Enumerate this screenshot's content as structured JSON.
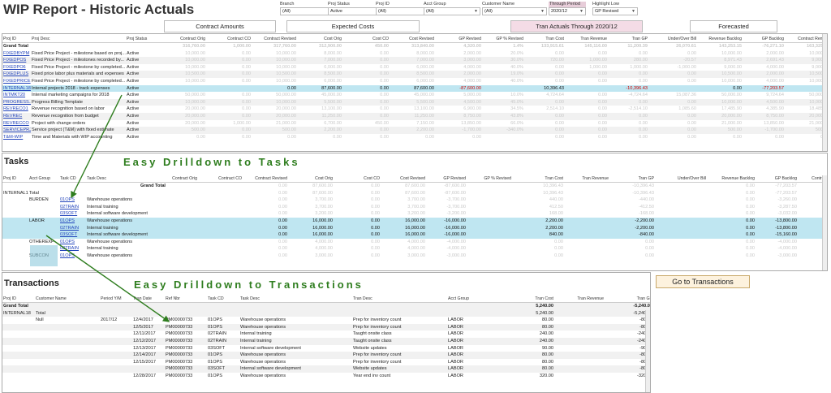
{
  "title": "WIP Report - Historic Actuals",
  "filters": [
    {
      "label": "Branch",
      "value": "(All)",
      "selected": false
    },
    {
      "label": "Proj Status",
      "value": "Active",
      "selected": false
    },
    {
      "label": "Proj ID",
      "value": "(All)",
      "selected": false
    },
    {
      "label": "Acct Group",
      "value": "(All)",
      "selected": false
    },
    {
      "label": "Customer Name",
      "value": "(All)",
      "selected": false
    },
    {
      "label": "Through Period",
      "value": "2020/12",
      "selected": true
    },
    {
      "label": "Highlight Low",
      "value": "GP Revised",
      "selected": false
    }
  ],
  "header_buttons": {
    "contract": "Contract Amounts",
    "costs": "Expected Costs",
    "tran": "Tran Actuals Through 2020/12",
    "forecasted": "Forecasted"
  },
  "projects": {
    "columns": [
      "Proj ID",
      "Proj Desc",
      "Proj Status",
      "Contract Orig",
      "Contract CO",
      "Contract Revised",
      "Cost Orig",
      "Cost CO",
      "Cost Revised",
      "GP Revised",
      "GP % Revised",
      "Tran Cost",
      "Tran Revenue",
      "Tran GP",
      "Under/Over Bill",
      "Revenue Backlog",
      "GP Backlog",
      "Contract Remain"
    ],
    "grand_total": [
      "Grand Total",
      "",
      "",
      "316,760.00",
      "1,000.00",
      "317,760.00",
      "312,900.00",
      "450.00",
      "313,840.00",
      "4,320.00",
      "1.4%",
      "133,915.61",
      "145,116.00",
      "11,200.39",
      "26,070.61",
      "143,253.15",
      "-76,271.10",
      "163,325.82"
    ],
    "rows": [
      [
        "FIXEDBYPM",
        "Fixed Price Project - milestone based on proj...",
        "Active",
        "10,000.00",
        "0.00",
        "10,000.00",
        "8,000.00",
        "0.00",
        "8,000.00",
        "2,000.00",
        "20.0%",
        "0.00",
        "0.00",
        "0.00",
        "0.00",
        "10,000.00",
        "2,000.00",
        "10,000.00"
      ],
      [
        "FIXEDPOS",
        "Fixed Price Project - milestones recorded by...",
        "Active",
        "10,000.00",
        "0.00",
        "10,000.00",
        "7,000.00",
        "0.00",
        "7,000.00",
        "3,000.00",
        "30.0%",
        "720.00",
        "1,000.00",
        "280.00",
        "-20.57",
        "8,971.43",
        "2,691.43",
        "9,000.00"
      ],
      [
        "FIXEDPO6",
        "Fixed Price Project - milestone by completed...",
        "Active",
        "10,000.00",
        "0.00",
        "10,000.00",
        "6,000.00",
        "0.00",
        "6,000.00",
        "4,000.00",
        "40.0%",
        "0.00",
        "1,000.00",
        "1,000.00",
        "-1,000.00",
        "9,000.00",
        "4,000.00",
        "9,000.00"
      ],
      [
        "FIXEDPLUS",
        "Fixed price labor plus materials and expenses",
        "Active",
        "10,500.00",
        "0.00",
        "10,500.00",
        "8,500.00",
        "0.00",
        "8,500.00",
        "2,000.00",
        "19.0%",
        "0.00",
        "0.00",
        "0.00",
        "0.00",
        "10,500.00",
        "2,000.00",
        "10,500.00"
      ],
      [
        "FIXEDPRICE",
        "Fixed Price Project - milestone by completed...",
        "Active",
        "10,000.00",
        "0.00",
        "10,000.00",
        "6,000.00",
        "0.00",
        "6,000.00",
        "4,000.00",
        "40.0%",
        "0.00",
        "0.00",
        "0.00",
        "0.00",
        "10,000.00",
        "4,000.00",
        "10,000.00"
      ],
      [
        "INTERNAL18",
        "Internal projects 2018 - track expenses",
        "Active",
        "",
        "",
        "0.00",
        "87,600.00",
        "0.00",
        "87,600.00",
        "-87,600.00",
        "",
        "10,396.43",
        "",
        "-10,396.43",
        "",
        "0.00",
        "-77,203.57",
        ""
      ],
      [
        "INTMKT20",
        "Internal marketing campaigns for 2018",
        "Active",
        "50,000.00",
        "0.00",
        "50,000.00",
        "45,000.00",
        "0.00",
        "45,000.00",
        "5,000.00",
        "10.0%",
        "4,724.64",
        "0.00",
        "-4,724.64",
        "15,087.36",
        "50,000.00",
        "9,724.64",
        "50,000.00"
      ],
      [
        "PROGRESS...",
        "Progress Billing Template",
        "Active",
        "10,000.00",
        "0.00",
        "10,000.00",
        "5,500.00",
        "0.00",
        "5,500.00",
        "4,500.00",
        "45.0%",
        "0.00",
        "0.00",
        "0.00",
        "0.00",
        "10,000.00",
        "4,500.00",
        "10,000.00"
      ],
      [
        "REVRECO1",
        "Revenue recognition based on labor",
        "Active",
        "20,000.00",
        "0.00",
        "20,000.00",
        "13,100.00",
        "0.00",
        "13,100.00",
        "6,900.00",
        "34.5%",
        "2,514.10",
        "0.00",
        "-2,514.10",
        "1,085.60",
        "17,485.90",
        "4,385.90",
        "18,485.00"
      ],
      [
        "REVREC",
        "Revenue recognition from budget",
        "Active",
        "20,000.00",
        "0.00",
        "20,000.00",
        "11,250.00",
        "0.00",
        "11,250.00",
        "8,750.00",
        "43.8%",
        "0.00",
        "0.00",
        "0.00",
        "0.00",
        "20,000.00",
        "8,750.00",
        "20,000.00"
      ],
      [
        "REVRECCO",
        "Project with change orders",
        "Active",
        "20,000.00",
        "1,000.00",
        "21,000.00",
        "6,700.00",
        "450.00",
        "7,150.00",
        "13,850.00",
        "66.0%",
        "0.00",
        "0.00",
        "0.00",
        "0.00",
        "21,000.00",
        "13,850.00",
        "21,000.00"
      ],
      [
        "SERVICEPRJ",
        "Service project (T&M) with fixed estimate",
        "Active",
        "500.00",
        "0.00",
        "500.00",
        "2,200.00",
        "0.00",
        "2,200.00",
        "-1,700.00",
        "-340.0%",
        "0.00",
        "0.00",
        "0.00",
        "0.00",
        "500.00",
        "-1,700.00",
        "500.00"
      ],
      [
        "T&M-WIP",
        "Time and Materials with WIP accounting",
        "Active",
        "0.00",
        "0.00",
        "0.00",
        "0.00",
        "0.00",
        "0.00",
        "0.00",
        "",
        "0.00",
        "0.00",
        "0.00",
        "0.00",
        "0.00",
        "0.00",
        "0.00"
      ]
    ]
  },
  "tasks": {
    "heading": "Tasks",
    "columns": [
      "Proj ID",
      "Acct Group",
      "Task CD",
      "Task Desc",
      "Contract Orig",
      "Contract CO",
      "Contract Revised",
      "Cost Orig",
      "Cost CO",
      "Cost Revised",
      "GP Revised",
      "GP % Revised",
      "Tran Cost",
      "Tran Revenue",
      "Tran GP",
      "Under/Over Bill",
      "Revenue Backlog",
      "GP Backlog",
      "Contract Remain"
    ],
    "grand_total_label": "Grand Total",
    "rows": [
      {
        "proj": "",
        "acct": "",
        "task": "",
        "desc": "",
        "vals": [
          "",
          "",
          "0.00",
          "87,600.00",
          "0.00",
          "87,600.00",
          "-87,600.00",
          "",
          "10,396.43",
          "",
          "-10,396.43",
          "",
          "0.00",
          "-77,203.57",
          ""
        ],
        "style": "faded"
      },
      {
        "proj": "INTERNAL18",
        "acct": "Total",
        "task": "",
        "desc": "",
        "vals": [
          "",
          "",
          "0.00",
          "87,600.00",
          "0.00",
          "87,600.00",
          "-87,600.00",
          "",
          "10,396.43",
          "",
          "-10,396.43",
          "",
          "0.00",
          "-77,203.57",
          ""
        ],
        "style": "faded"
      },
      {
        "proj": "",
        "acct": "BURDEN",
        "task": "01OPS",
        "desc": "Warehouse operations",
        "vals": [
          "",
          "",
          "0.00",
          "3,700.00",
          "0.00",
          "3,700.00",
          "-3,700.00",
          "",
          "440.00",
          "",
          "-440.00",
          "",
          "0.00",
          "-3,260.00",
          ""
        ],
        "style": "faded"
      },
      {
        "proj": "",
        "acct": "",
        "task": "02TRAIN",
        "desc": "Internal training",
        "vals": [
          "",
          "",
          "0.00",
          "3,700.00",
          "0.00",
          "3,700.00",
          "-3,700.00",
          "",
          "412.50",
          "",
          "-412.50",
          "",
          "0.00",
          "-3,287.50",
          ""
        ],
        "style": "faded"
      },
      {
        "proj": "",
        "acct": "",
        "task": "03SOFT",
        "desc": "Internal software development",
        "vals": [
          "",
          "",
          "0.00",
          "3,200.00",
          "0.00",
          "3,200.00",
          "-3,200.00",
          "",
          "168.00",
          "",
          "-168.00",
          "",
          "0.00",
          "-3,032.00",
          ""
        ],
        "style": "faded"
      },
      {
        "proj": "",
        "acct": "LABOR",
        "task": "01OPS",
        "desc": "Warehouse operations",
        "vals": [
          "",
          "",
          "0.00",
          "16,000.00",
          "0.00",
          "16,000.00",
          "-16,000.00",
          "",
          "2,200.00",
          "",
          "-2,200.00",
          "",
          "0.00",
          "-13,800.00",
          ""
        ],
        "style": "hl"
      },
      {
        "proj": "",
        "acct": "",
        "task": "02TRAIN",
        "desc": "Internal training",
        "vals": [
          "",
          "",
          "0.00",
          "16,000.00",
          "0.00",
          "16,000.00",
          "-16,000.00",
          "",
          "2,200.00",
          "",
          "-2,200.00",
          "",
          "0.00",
          "-13,800.00",
          ""
        ],
        "style": "hl"
      },
      {
        "proj": "",
        "acct": "",
        "task": "03SOFT",
        "desc": "Internal software development",
        "vals": [
          "",
          "",
          "0.00",
          "16,000.00",
          "0.00",
          "16,000.00",
          "-16,000.00",
          "",
          "840.00",
          "",
          "-840.00",
          "",
          "0.00",
          "-15,160.00",
          ""
        ],
        "style": "hl"
      },
      {
        "proj": "",
        "acct": "OTHEREXP",
        "task": "01OPS",
        "desc": "Warehouse operations",
        "vals": [
          "",
          "",
          "0.00",
          "4,000.00",
          "0.00",
          "4,000.00",
          "-4,000.00",
          "",
          "0.00",
          "",
          "0.00",
          "",
          "0.00",
          "-4,000.00",
          ""
        ],
        "style": "faded"
      },
      {
        "proj": "",
        "acct": "",
        "task": "02TRAIN",
        "desc": "Internal training",
        "vals": [
          "",
          "",
          "0.00",
          "4,000.00",
          "0.00",
          "4,000.00",
          "-4,000.00",
          "",
          "0.00",
          "",
          "0.00",
          "",
          "0.00",
          "-4,000.00",
          ""
        ],
        "style": "faded"
      },
      {
        "proj": "",
        "acct": "SUBCON",
        "task": "01OPS",
        "desc": "Warehouse operations",
        "vals": [
          "",
          "",
          "0.00",
          "3,000.00",
          "0.00",
          "3,000.00",
          "-3,000.00",
          "",
          "0.00",
          "",
          "0.00",
          "",
          "0.00",
          "-3,000.00",
          ""
        ],
        "style": "faded"
      }
    ]
  },
  "transactions": {
    "heading": "Transactions",
    "go_button": "Go to Transactions",
    "columns": [
      "Proj ID",
      "Customer Name",
      "Period Y/M",
      "Tran Date",
      "Ref Nbr",
      "Task CD",
      "Task Desc",
      "Tran Desc",
      "Acct Group",
      "Tran Cost",
      "Tran Revenue",
      "Tran GP"
    ],
    "grand_total": {
      "label": "Grand Total",
      "cost": "5,240.00",
      "gp": "-5,240.00"
    },
    "total": {
      "proj": "INTERNAL18",
      "label": "Total",
      "cost": "5,240.00",
      "gp": "-5,240.00"
    },
    "customer": "Null",
    "period": "2017/12",
    "rows": [
      [
        "12/4/2017",
        "PM00000733",
        "01OPS",
        "Warehouse operations",
        "Prep for inventory count",
        "LABOR",
        "80.00",
        "",
        "-80.00"
      ],
      [
        "12/5/2017",
        "PM00000733",
        "01OPS",
        "Warehouse operations",
        "Prep for inventory count",
        "LABOR",
        "80.00",
        "",
        "-80.00"
      ],
      [
        "12/11/2017",
        "PM00000733",
        "02TRAIN",
        "Internal training",
        "Taught onsite class",
        "LABOR",
        "240.00",
        "",
        "-240.00"
      ],
      [
        "12/12/2017",
        "PM00000733",
        "02TRAIN",
        "Internal training",
        "Taught onsite class",
        "LABOR",
        "240.00",
        "",
        "-240.00"
      ],
      [
        "12/13/2017",
        "PM00000733",
        "03SOFT",
        "Internal software development",
        "Website updates",
        "LABOR",
        "90.00",
        "",
        "-90.00"
      ],
      [
        "12/14/2017",
        "PM00000733",
        "01OPS",
        "Warehouse operations",
        "Prep for inventory count",
        "LABOR",
        "80.00",
        "",
        "-80.00"
      ],
      [
        "12/15/2017",
        "PM00000733",
        "01OPS",
        "Warehouse operations",
        "Prep for inventory count",
        "LABOR",
        "80.00",
        "",
        "-80.00"
      ],
      [
        "",
        "PM00000733",
        "03SOFT",
        "Internal software development",
        "Website updates",
        "LABOR",
        "80.00",
        "",
        "-80.00"
      ],
      [
        "12/28/2017",
        "PM00000733",
        "01OPS",
        "Warehouse operations",
        "Year end inv count",
        "LABOR",
        "320.00",
        "",
        "-320.00"
      ]
    ]
  },
  "annotations": {
    "tasks": "Easy Drilldown to Tasks",
    "transactions": "Easy Drilldown to Transactions"
  }
}
